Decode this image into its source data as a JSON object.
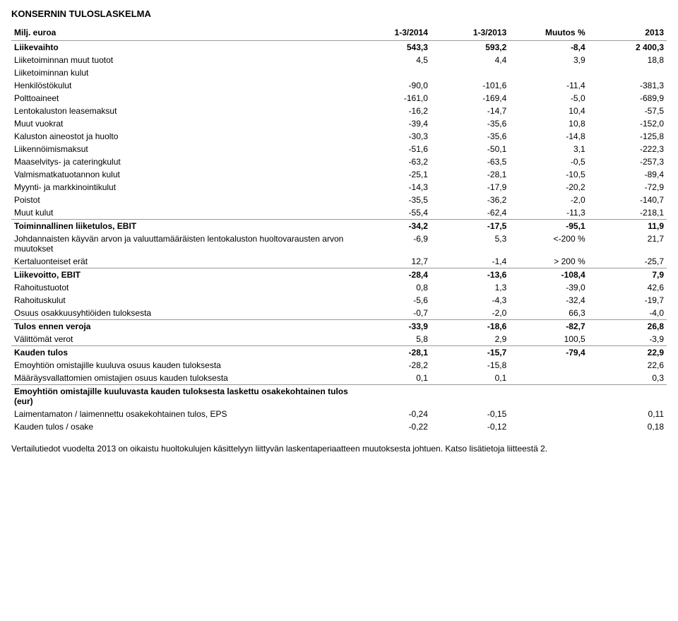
{
  "title": "KONSERNIN TULOSLASKELMA",
  "columns": [
    "Milj. euroa",
    "1-3/2014",
    "1-3/2013",
    "Muutos %",
    "2013"
  ],
  "rows": [
    {
      "label": "Liikevaihto",
      "c1": "543,3",
      "c2": "593,2",
      "c3": "-8,4",
      "c4": "2 400,3",
      "bold": true,
      "top": false
    },
    {
      "label": "Liiketoiminnan muut tuotot",
      "c1": "4,5",
      "c2": "4,4",
      "c3": "3,9",
      "c4": "18,8",
      "bold": false,
      "top": false
    },
    {
      "label": "Liiketoiminnan kulut",
      "c1": "",
      "c2": "",
      "c3": "",
      "c4": "",
      "bold": false,
      "top": false
    },
    {
      "label": "Henkilöstökulut",
      "c1": "-90,0",
      "c2": "-101,6",
      "c3": "-11,4",
      "c4": "-381,3",
      "bold": false,
      "top": false
    },
    {
      "label": "Polttoaineet",
      "c1": "-161,0",
      "c2": "-169,4",
      "c3": "-5,0",
      "c4": "-689,9",
      "bold": false,
      "top": false
    },
    {
      "label": "Lentokaluston leasemaksut",
      "c1": "-16,2",
      "c2": "-14,7",
      "c3": "10,4",
      "c4": "-57,5",
      "bold": false,
      "top": false
    },
    {
      "label": "Muut vuokrat",
      "c1": "-39,4",
      "c2": "-35,6",
      "c3": "10,8",
      "c4": "-152,0",
      "bold": false,
      "top": false
    },
    {
      "label": "Kaluston aineostot ja huolto",
      "c1": "-30,3",
      "c2": "-35,6",
      "c3": "-14,8",
      "c4": "-125,8",
      "bold": false,
      "top": false
    },
    {
      "label": "Liikennöimismaksut",
      "c1": "-51,6",
      "c2": "-50,1",
      "c3": "3,1",
      "c4": "-222,3",
      "bold": false,
      "top": false
    },
    {
      "label": "Maaselvitys- ja cateringkulut",
      "c1": "-63,2",
      "c2": "-63,5",
      "c3": "-0,5",
      "c4": "-257,3",
      "bold": false,
      "top": false
    },
    {
      "label": "Valmismatkatuotannon kulut",
      "c1": "-25,1",
      "c2": "-28,1",
      "c3": "-10,5",
      "c4": "-89,4",
      "bold": false,
      "top": false
    },
    {
      "label": "Myynti- ja markkinointikulut",
      "c1": "-14,3",
      "c2": "-17,9",
      "c3": "-20,2",
      "c4": "-72,9",
      "bold": false,
      "top": false
    },
    {
      "label": "Poistot",
      "c1": "-35,5",
      "c2": "-36,2",
      "c3": "-2,0",
      "c4": "-140,7",
      "bold": false,
      "top": false
    },
    {
      "label": "Muut kulut",
      "c1": "-55,4",
      "c2": "-62,4",
      "c3": "-11,3",
      "c4": "-218,1",
      "bold": false,
      "top": false
    },
    {
      "label": "Toiminnallinen liiketulos, EBIT",
      "c1": "-34,2",
      "c2": "-17,5",
      "c3": "-95,1",
      "c4": "11,9",
      "bold": true,
      "top": true
    },
    {
      "label": "Johdannaisten käyvän arvon ja valuuttamääräisten lentokaluston huoltovarausten arvon muutokset",
      "c1": "-6,9",
      "c2": "5,3",
      "c3": "<-200 %",
      "c4": "21,7",
      "bold": false,
      "top": false
    },
    {
      "label": "Kertaluonteiset erät",
      "c1": "12,7",
      "c2": "-1,4",
      "c3": "> 200 %",
      "c4": "-25,7",
      "bold": false,
      "top": false
    },
    {
      "label": "Liikevoitto, EBIT",
      "c1": "-28,4",
      "c2": "-13,6",
      "c3": "-108,4",
      "c4": "7,9",
      "bold": true,
      "top": true
    },
    {
      "label": "Rahoitustuotot",
      "c1": "0,8",
      "c2": "1,3",
      "c3": "-39,0",
      "c4": "42,6",
      "bold": false,
      "top": false
    },
    {
      "label": "Rahoituskulut",
      "c1": "-5,6",
      "c2": "-4,3",
      "c3": "-32,4",
      "c4": "-19,7",
      "bold": false,
      "top": false
    },
    {
      "label": "Osuus osakkuusyhtiöiden tuloksesta",
      "c1": "-0,7",
      "c2": "-2,0",
      "c3": "66,3",
      "c4": "-4,0",
      "bold": false,
      "top": false
    },
    {
      "label": "Tulos ennen veroja",
      "c1": "-33,9",
      "c2": "-18,6",
      "c3": "-82,7",
      "c4": "26,8",
      "bold": true,
      "top": true
    },
    {
      "label": "Välittömät verot",
      "c1": "5,8",
      "c2": "2,9",
      "c3": "100,5",
      "c4": "-3,9",
      "bold": false,
      "top": false
    },
    {
      "label": "Kauden tulos",
      "c1": "-28,1",
      "c2": "-15,7",
      "c3": "-79,4",
      "c4": "22,9",
      "bold": true,
      "top": true
    },
    {
      "label": "Emoyhtiön omistajille kuuluva osuus kauden tuloksesta",
      "c1": "-28,2",
      "c2": "-15,8",
      "c3": "",
      "c4": "22,6",
      "bold": false,
      "top": false
    },
    {
      "label": "Määräysvallattomien omistajien osuus kauden tuloksesta",
      "c1": "0,1",
      "c2": "0,1",
      "c3": "",
      "c4": "0,3",
      "bold": false,
      "top": false
    },
    {
      "label": "Emoyhtiön omistajille kuuluvasta kauden tuloksesta laskettu osakekohtainen tulos (eur)",
      "c1": "",
      "c2": "",
      "c3": "",
      "c4": "",
      "bold": true,
      "top": true
    },
    {
      "label": "Laimentamaton / laimennettu osakekohtainen tulos, EPS",
      "c1": "-0,24",
      "c2": "-0,15",
      "c3": "",
      "c4": "0,11",
      "bold": false,
      "top": false
    },
    {
      "label": "Kauden tulos / osake",
      "c1": "-0,22",
      "c2": "-0,12",
      "c3": "",
      "c4": "0,18",
      "bold": false,
      "top": false
    }
  ],
  "footnote": "Vertailutiedot vuodelta 2013 on oikaistu huoltokulujen käsittelyyn liittyvän laskentaperiaatteen muutoksesta johtuen. Katso lisätietoja liitteestä 2."
}
